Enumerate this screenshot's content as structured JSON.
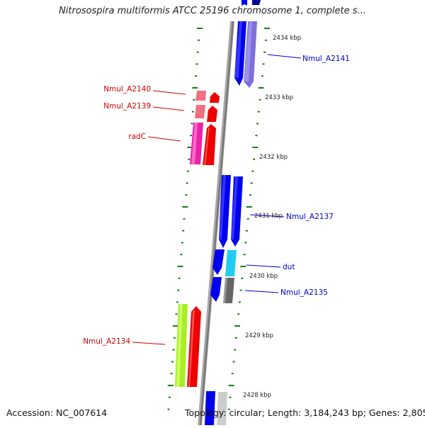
{
  "header": {
    "title": "Nitrosospira multiformis ATCC 25196 chromosome 1, complete s..."
  },
  "footer": {
    "accession": "Accession: NC_007614",
    "topology": "Topology: circular; Length: 3,184,243 bp; Genes: 2,805"
  },
  "scale_labels": [
    "2434 kbp",
    "2433 kbp",
    "2432 kbp",
    "2431 kbp",
    "2430 kbp",
    "2429 kbp",
    "2428 kbp"
  ],
  "gene_labels": {
    "nmul_a2141": "Nmul_A2141",
    "nmul_a2140": "Nmul_A2140",
    "nmul_a2139": "Nmul_A2139",
    "radc": "radC",
    "nmul_a2137": "Nmul_A2137",
    "dut": "dut",
    "nmul_a2135": "Nmul_A2135",
    "nmul_a2134": "Nmul_A2134"
  },
  "colors": {
    "forward_label": "#0000cc",
    "reverse_label": "#cc0000",
    "tick": "#1a7a1a",
    "backbone": "#888888",
    "blue": "#0000ee",
    "lavender": "#7f6fdd",
    "pink": "#f07080",
    "red": "#ee0000",
    "magenta": "#ee22aa",
    "cyan": "#22ccee",
    "gray": "#666666",
    "lime": "#aaee22",
    "light_gray": "#cccccc"
  }
}
